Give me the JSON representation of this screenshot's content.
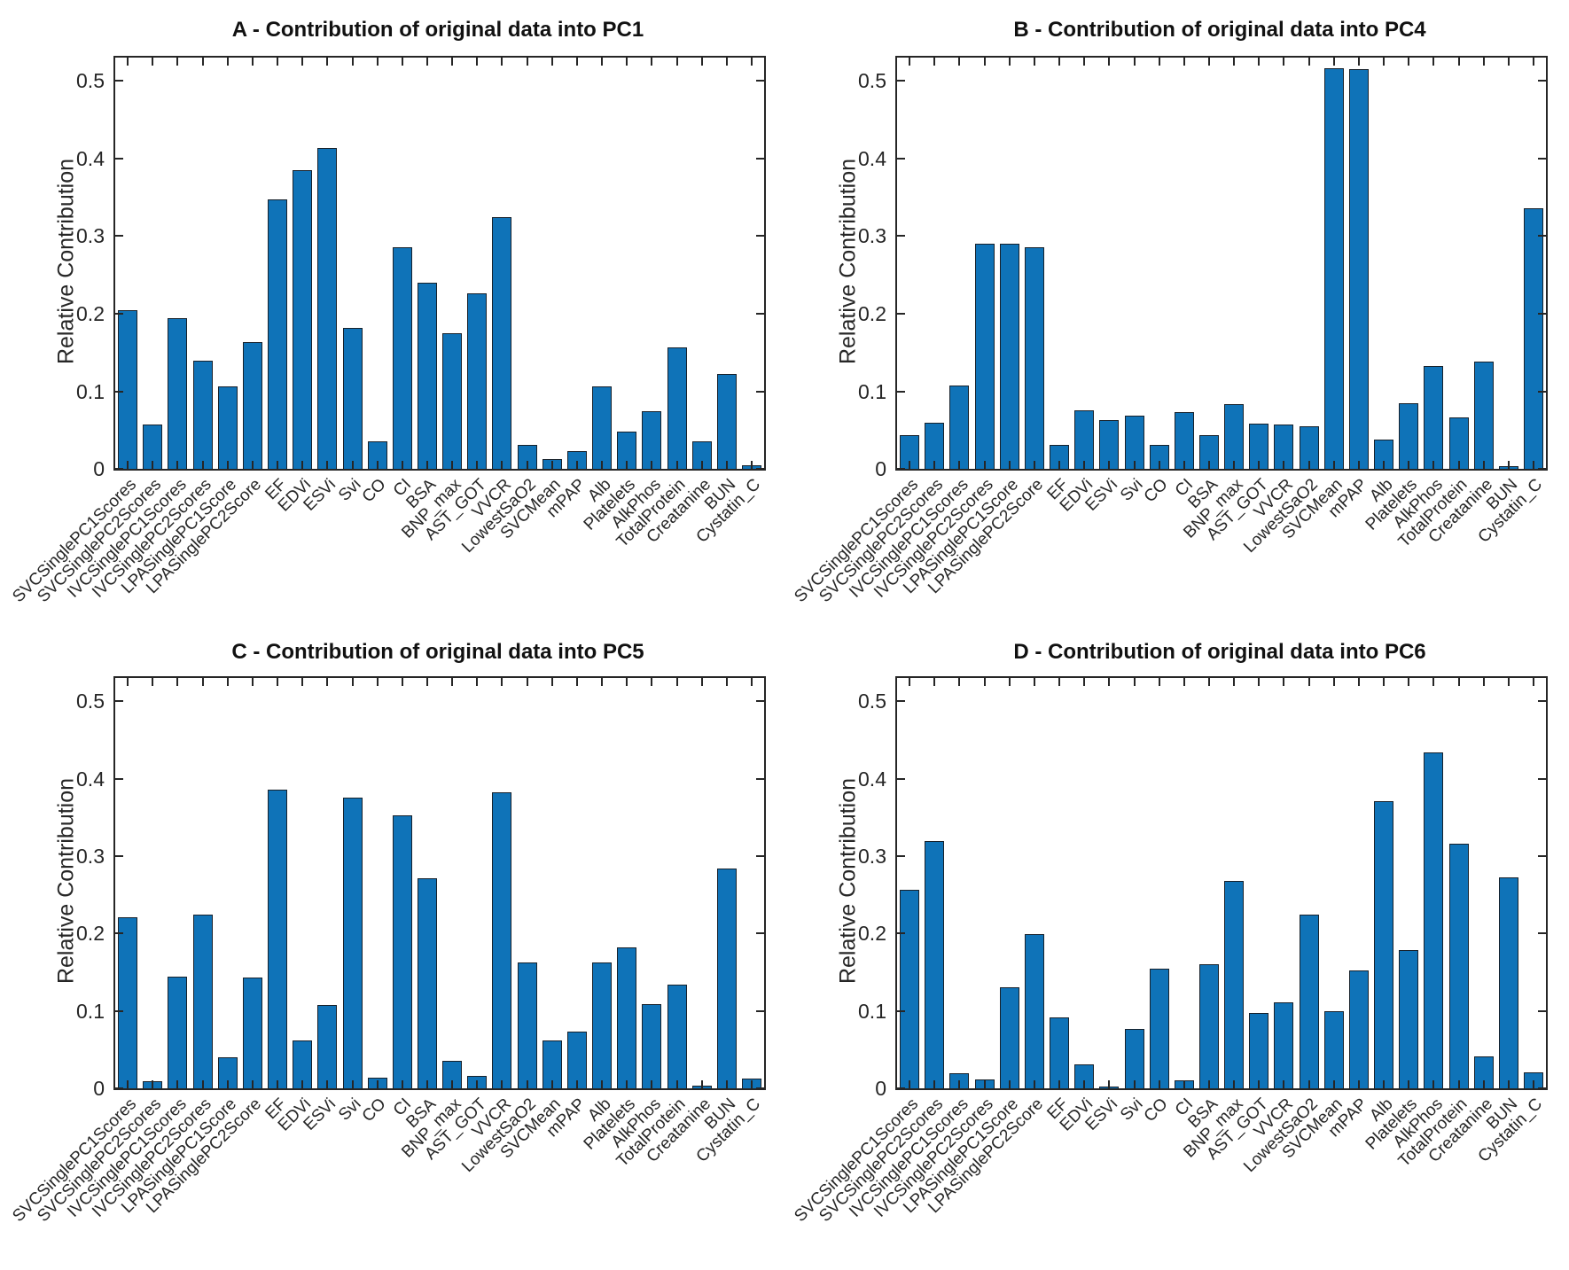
{
  "figure": {
    "background": "#ffffff",
    "bar_color": "#0f73b8",
    "bar_edge_color": "#17212b",
    "axis_color": "#262626",
    "text_color": "#1a1a1a"
  },
  "chart_data": [
    {
      "type": "bar",
      "title": "A - Contribution of original data into PC1",
      "xlabel": "",
      "ylabel": "Relative Contribution",
      "ylim": [
        0,
        0.53
      ],
      "yticks": [
        0,
        0.1,
        0.2,
        0.3,
        0.4,
        0.5
      ],
      "ytick_labels": [
        "0",
        "0.1",
        "0.2",
        "0.3",
        "0.4",
        "0.5"
      ],
      "grid": false,
      "legend": false,
      "categories": [
        "SVCSinglePC1Scores",
        "SVCSinglePC2Scores",
        "IVCSinglePC1Scores",
        "IVCSinglePC2Scores",
        "LPASinglePC1Score",
        "LPASinglePC2Score",
        "EF",
        "EDVi",
        "ESVi",
        "Svi",
        "CO",
        "CI",
        "BSA",
        "BNP_max",
        "AST_GOT",
        "VVCR",
        "LowestSaO2",
        "SVCMean",
        "mPAP",
        "Alb",
        "Platelets",
        "AlkPhos",
        "TotalProtein",
        "Creatanine",
        "BUN",
        "Cystatin_C"
      ],
      "values": [
        0.204,
        0.057,
        0.194,
        0.139,
        0.106,
        0.163,
        0.347,
        0.385,
        0.414,
        0.182,
        0.036,
        0.286,
        0.24,
        0.175,
        0.226,
        0.325,
        0.031,
        0.013,
        0.023,
        0.106,
        0.048,
        0.074,
        0.156,
        0.036,
        0.122,
        0.005
      ]
    },
    {
      "type": "bar",
      "title": "B - Contribution of original data into PC4",
      "xlabel": "",
      "ylabel": "Relative Contribution",
      "ylim": [
        0,
        0.53
      ],
      "yticks": [
        0,
        0.1,
        0.2,
        0.3,
        0.4,
        0.5
      ],
      "ytick_labels": [
        "0",
        "0.1",
        "0.2",
        "0.3",
        "0.4",
        "0.5"
      ],
      "grid": false,
      "legend": false,
      "categories": [
        "SVCSinglePC1Scores",
        "SVCSinglePC2Scores",
        "IVCSinglePC1Scores",
        "IVCSinglePC2Scores",
        "LPASinglePC1Score",
        "LPASinglePC2Score",
        "EF",
        "EDVi",
        "ESVi",
        "Svi",
        "CO",
        "CI",
        "BSA",
        "BNP_max",
        "AST_GOT",
        "VVCR",
        "LowestSaO2",
        "SVCMean",
        "mPAP",
        "Alb",
        "Platelets",
        "AlkPhos",
        "TotalProtein",
        "Creatanine",
        "BUN",
        "Cystatin_C"
      ],
      "values": [
        0.043,
        0.059,
        0.107,
        0.29,
        0.29,
        0.286,
        0.031,
        0.075,
        0.063,
        0.069,
        0.031,
        0.073,
        0.044,
        0.084,
        0.058,
        0.057,
        0.055,
        0.516,
        0.515,
        0.038,
        0.085,
        0.133,
        0.066,
        0.138,
        0.004,
        0.336
      ]
    },
    {
      "type": "bar",
      "title": "C - Contribution of original data into PC5",
      "xlabel": "",
      "ylabel": "Relative Contribution",
      "ylim": [
        0,
        0.53
      ],
      "yticks": [
        0,
        0.1,
        0.2,
        0.3,
        0.4,
        0.5
      ],
      "ytick_labels": [
        "0",
        "0.1",
        "0.2",
        "0.3",
        "0.4",
        "0.5"
      ],
      "grid": false,
      "legend": false,
      "categories": [
        "SVCSinglePC1Scores",
        "SVCSinglePC2Scores",
        "IVCSinglePC1Scores",
        "IVCSinglePC2Scores",
        "LPASinglePC1Score",
        "LPASinglePC2Score",
        "EF",
        "EDVi",
        "ESVi",
        "Svi",
        "CO",
        "CI",
        "BSA",
        "BNP_max",
        "AST_GOT",
        "VVCR",
        "LowestSaO2",
        "SVCMean",
        "mPAP",
        "Alb",
        "Platelets",
        "AlkPhos",
        "TotalProtein",
        "Creatanine",
        "BUN",
        "Cystatin_C"
      ],
      "values": [
        0.221,
        0.009,
        0.144,
        0.224,
        0.04,
        0.143,
        0.386,
        0.062,
        0.108,
        0.375,
        0.014,
        0.353,
        0.271,
        0.035,
        0.016,
        0.382,
        0.163,
        0.062,
        0.073,
        0.163,
        0.182,
        0.109,
        0.134,
        0.004,
        0.284,
        0.013
      ]
    },
    {
      "type": "bar",
      "title": "D - Contribution of original data into PC6",
      "xlabel": "",
      "ylabel": "Relative Contribution",
      "ylim": [
        0,
        0.53
      ],
      "yticks": [
        0,
        0.1,
        0.2,
        0.3,
        0.4,
        0.5
      ],
      "ytick_labels": [
        "0",
        "0.1",
        "0.2",
        "0.3",
        "0.4",
        "0.5"
      ],
      "grid": false,
      "legend": false,
      "categories": [
        "SVCSinglePC1Scores",
        "SVCSinglePC2Scores",
        "IVCSinglePC1Scores",
        "IVCSinglePC2Scores",
        "LPASinglePC1Score",
        "LPASinglePC2Score",
        "EF",
        "EDVi",
        "ESVi",
        "Svi",
        "CO",
        "CI",
        "BSA",
        "BNP_max",
        "AST_GOT",
        "VVCR",
        "LowestSaO2",
        "SVCMean",
        "mPAP",
        "Alb",
        "Platelets",
        "AlkPhos",
        "TotalProtein",
        "Creatanine",
        "BUN",
        "Cystatin_C"
      ],
      "values": [
        0.257,
        0.32,
        0.02,
        0.012,
        0.131,
        0.199,
        0.092,
        0.031,
        0.002,
        0.077,
        0.155,
        0.01,
        0.16,
        0.268,
        0.097,
        0.111,
        0.224,
        0.1,
        0.152,
        0.371,
        0.179,
        0.434,
        0.316,
        0.041,
        0.273,
        0.021
      ]
    }
  ]
}
